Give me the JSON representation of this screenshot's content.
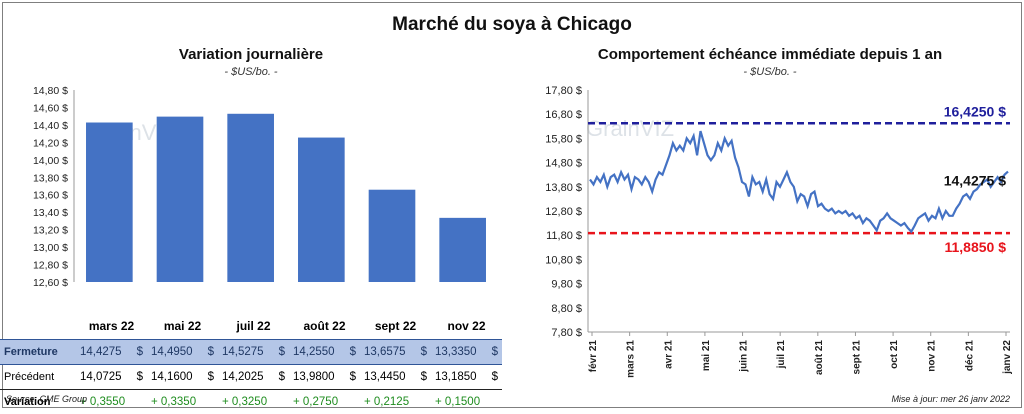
{
  "title": "Marché du soya à Chicago",
  "left": {
    "title": "Variation  journalière",
    "unit": "- $US/bo. -"
  },
  "right": {
    "title": "Comportement  échéance immédiate depuis 1 an",
    "unit": "- $US/bo. -",
    "high_label": "16,4250 $",
    "low_label": "11,8850 $",
    "last_label": "14,4275 $"
  },
  "table": {
    "months": [
      "mars 22",
      "mai 22",
      "juil 22",
      "août 22",
      "sept 22",
      "nov 22"
    ],
    "rows": [
      {
        "label": "Fermeture",
        "values": [
          "14,4275",
          "14,4950",
          "14,5275",
          "14,2550",
          "13,6575",
          "13,3350"
        ]
      },
      {
        "label": "Précédent",
        "values": [
          "14,0725",
          "14,1600",
          "14,2025",
          "13,9800",
          "13,4450",
          "13,1850"
        ]
      },
      {
        "label": "Variation",
        "values": [
          "+ 0,3550",
          "+ 0,3350",
          "+ 0,3250",
          "+ 0,2750",
          "+ 0,2125",
          "+ 0,1500"
        ]
      }
    ],
    "dollar": "$"
  },
  "source": "Source: CME Group",
  "updated": "Mise à jour: mer 26 janv 2022",
  "watermark": "GrainVIZ",
  "colors": {
    "bar": "#4472c4",
    "line": "#4472c4",
    "high": "#1f1f9c",
    "low": "#e8141c",
    "table_bg": "#b4c6e7",
    "positive": "#1e8c1e"
  },
  "chart_data": [
    {
      "type": "bar",
      "categories": [
        "mars 22",
        "mai 22",
        "juil 22",
        "août 22",
        "sept 22",
        "nov 22"
      ],
      "values": [
        14.4275,
        14.495,
        14.5275,
        14.255,
        13.6575,
        13.335
      ],
      "ylim": [
        12.6,
        14.8
      ],
      "yticks": [
        "12,60 $",
        "12,80 $",
        "13,00 $",
        "13,20 $",
        "13,40 $",
        "13,60 $",
        "13,80 $",
        "14,00 $",
        "14,20 $",
        "14,40 $",
        "14,60 $",
        "14,80 $"
      ],
      "grid": false
    },
    {
      "type": "line",
      "ylim": [
        7.8,
        17.8
      ],
      "yticks": [
        "7,80 $",
        "8,80 $",
        "9,80 $",
        "10,80 $",
        "11,80 $",
        "12,80 $",
        "13,80 $",
        "14,80 $",
        "15,80 $",
        "16,80 $",
        "17,80 $"
      ],
      "xticks": [
        "févr 21",
        "mars 21",
        "avr 21",
        "mai 21",
        "juin 21",
        "juil 21",
        "août 21",
        "sept 21",
        "oct 21",
        "nov 21",
        "déc 21",
        "janv 22"
      ],
      "series": [
        {
          "values": [
            14.1,
            13.9,
            14.2,
            14.0,
            14.3,
            13.8,
            14.2,
            14.3,
            14.0,
            14.4,
            14.1,
            14.3,
            13.7,
            14.2,
            14.1,
            13.9,
            14.2,
            14.0,
            13.6,
            14.1,
            14.4,
            14.3,
            14.7,
            15.1,
            15.6,
            15.3,
            15.5,
            15.3,
            15.8,
            15.6,
            15.9,
            15.1,
            16.1,
            15.6,
            15.1,
            14.9,
            15.1,
            15.6,
            15.3,
            15.8,
            15.5,
            15.7,
            15.0,
            14.6,
            14.0,
            13.9,
            13.4,
            14.2,
            13.9,
            14.0,
            13.6,
            14.1,
            13.5,
            13.3,
            14.0,
            13.8,
            14.1,
            14.4,
            14.0,
            13.8,
            13.2,
            13.5,
            13.4,
            13.0,
            13.5,
            13.6,
            13.0,
            13.1,
            12.9,
            12.8,
            12.9,
            12.7,
            12.8,
            12.7,
            12.8,
            12.6,
            12.7,
            12.5,
            12.6,
            12.3,
            12.5,
            12.4,
            12.2,
            12.0,
            12.4,
            12.5,
            12.7,
            12.5,
            12.4,
            12.3,
            12.2,
            12.3,
            12.1,
            11.95,
            12.2,
            12.5,
            12.6,
            12.7,
            12.4,
            12.6,
            12.5,
            12.9,
            12.5,
            12.8,
            12.6,
            12.6,
            12.9,
            13.1,
            13.4,
            13.5,
            13.3,
            13.6,
            13.7,
            13.9,
            14.0,
            14.1,
            13.8,
            14.0,
            14.2,
            14.0,
            14.3,
            14.4275
          ]
        }
      ],
      "reference_lines": [
        {
          "label": "16,4250 $",
          "value": 16.425,
          "color": "#1f1f9c"
        },
        {
          "label": "11,8850 $",
          "value": 11.885,
          "color": "#e8141c"
        }
      ],
      "last_value": 14.4275
    }
  ]
}
